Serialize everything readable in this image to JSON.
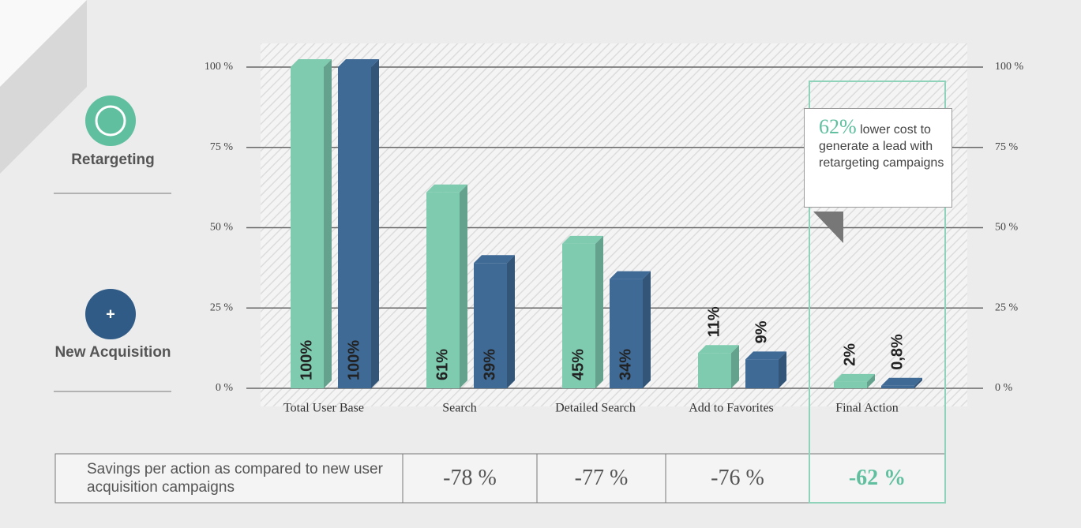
{
  "chart_data": {
    "type": "bar",
    "categories": [
      "Total User Base",
      "Search",
      "Detailed Search",
      "Add to Favorites",
      "Final Action"
    ],
    "series": [
      {
        "name": "Retargeting",
        "color": "#7ecbb0",
        "values": [
          100,
          61,
          45,
          11,
          2
        ],
        "value_labels": [
          "100%",
          "61%",
          "45%",
          "11%",
          "2%"
        ]
      },
      {
        "name": "New Acquisition",
        "color": "#3f6a96",
        "values": [
          100,
          39,
          34,
          9,
          0.8
        ],
        "value_labels": [
          "100%",
          "39%",
          "34%",
          "9%",
          "0,8%"
        ]
      }
    ],
    "ylim": [
      0,
      100
    ],
    "yticks": [
      {
        "value": 0,
        "label": "0 %"
      },
      {
        "value": 25,
        "label": "25 %"
      },
      {
        "value": 50,
        "label": "50 %"
      },
      {
        "value": 75,
        "label": "75 %"
      },
      {
        "value": 100,
        "label": "100 %"
      }
    ],
    "y2lim": [
      0,
      100
    ],
    "y2ticks": [
      {
        "value": 0,
        "label": "0 %"
      },
      {
        "value": 25,
        "label": "25 %"
      },
      {
        "value": 50,
        "label": "50 %"
      },
      {
        "value": 75,
        "label": "75 %"
      },
      {
        "value": 100,
        "label": "100 %"
      }
    ],
    "grid": true,
    "callout": {
      "highlight": "62%",
      "text": "lower cost to generate a lead with retargeting campaigns"
    }
  },
  "savings_table": {
    "label": "Savings per action as compared to new user acquisition campaigns",
    "cells": [
      "-78 %",
      "-77 %",
      "-76 %",
      "-62 %"
    ]
  }
}
